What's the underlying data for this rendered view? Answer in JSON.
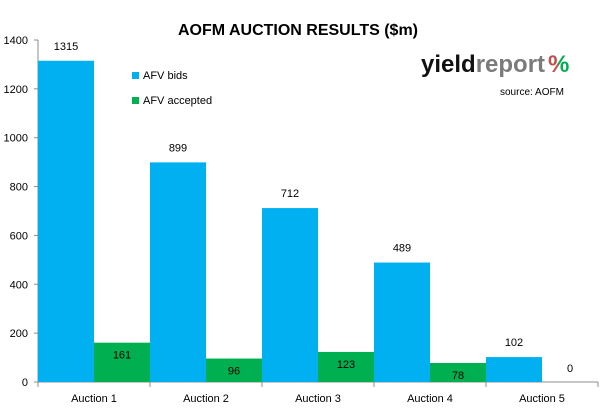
{
  "chart_data": {
    "type": "bar",
    "title": "AOFM AUCTION RESULTS ($m)",
    "categories": [
      "Auction 1",
      "Auction 2",
      "Auction 3",
      "Auction 4",
      "Auction 5"
    ],
    "series": [
      {
        "name": "AFV bids",
        "color": "#00b0f0",
        "values": [
          1315,
          899,
          712,
          489,
          102
        ]
      },
      {
        "name": "AFV accepted",
        "color": "#00b050",
        "values": [
          161,
          96,
          123,
          78,
          0
        ]
      }
    ],
    "ylim": [
      0,
      1400
    ],
    "yticks": [
      0,
      200,
      400,
      600,
      800,
      1000,
      1200,
      1400
    ],
    "xlabel": "",
    "ylabel": "",
    "grid": false,
    "legend_position": "top-left"
  },
  "branding": {
    "logo_part1": "yield",
    "logo_part2": "report",
    "logo_symbol": "%",
    "source_text": "source: AOFM",
    "symbol_colors": [
      "#c0504d",
      "#00b050"
    ]
  }
}
